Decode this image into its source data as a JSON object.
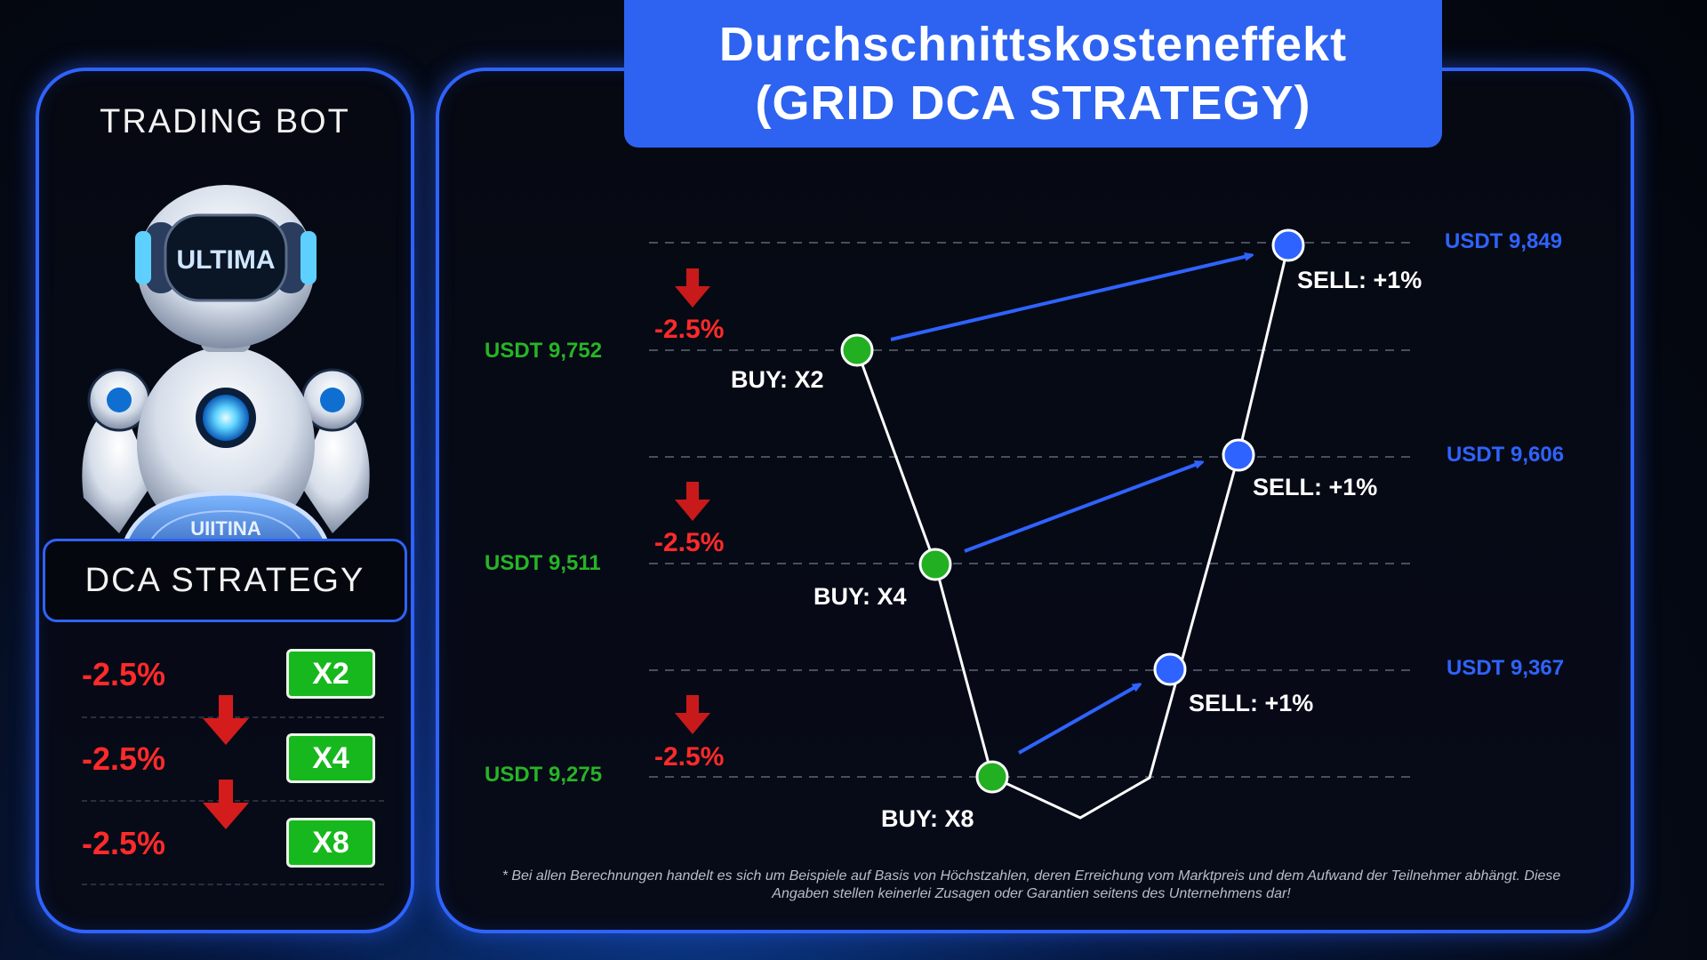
{
  "title": {
    "line1": "Durchschnittskosteneffekt",
    "line2": "(GRID DCA STRATEGY)"
  },
  "sidebar": {
    "heading": "TRADING BOT",
    "robot_visor_text": "ULTIMA",
    "robot_coin_text": "UIITINA",
    "strategy_label": "DCA STRATEGY",
    "rows": [
      {
        "pct": "-2.5%",
        "multiplier": "X2"
      },
      {
        "pct": "-2.5%",
        "multiplier": "X4"
      },
      {
        "pct": "-2.5%",
        "multiplier": "X8"
      }
    ]
  },
  "diagram": {
    "buy_levels": [
      {
        "price": "USDT 9,752",
        "label": "BUY: X2",
        "drop": "-2.5%"
      },
      {
        "price": "USDT 9,511",
        "label": "BUY: X4",
        "drop": "-2.5%"
      },
      {
        "price": "USDT 9,275",
        "label": "BUY: X8",
        "drop": "-2.5%"
      }
    ],
    "sell_levels": [
      {
        "price": "USDT 9,849",
        "label": "SELL: +1%"
      },
      {
        "price": "USDT 9,606",
        "label": "SELL: +1%"
      },
      {
        "price": "USDT 9,367",
        "label": "SELL: +1%"
      }
    ]
  },
  "disclaimer": {
    "line1": "* Bei allen Berechnungen handelt es sich um Beispiele auf Basis von Höchstzahlen, deren Erreichung vom Marktpreis und dem Aufwand der Teilnehmer abhängt. Diese",
    "line2": "Angaben stellen keinerlei Zusagen oder Garantien seitens des Unternehmens dar!"
  },
  "colors": {
    "accent": "#2f63ff",
    "buy": "#27b427",
    "sell": "#2f63ff",
    "drop": "#ff2a2a",
    "background": "#050a16"
  }
}
